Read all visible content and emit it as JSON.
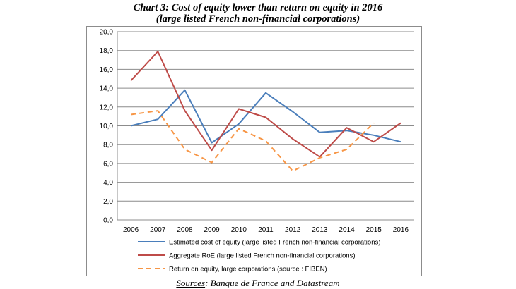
{
  "title_line1": "Chart 3: Cost of equity lower than return on equity in 2016",
  "title_line2": "(large listed French non-financial corporations)",
  "source_label": "Sources",
  "source_text": ": Banque de France and Datastream",
  "chart_data": {
    "type": "line",
    "title": "Chart 3: Cost of equity lower than return on equity in 2016 (large listed French non-financial corporations)",
    "xlabel": "",
    "ylabel": "",
    "categories": [
      "2006",
      "2007",
      "2008",
      "2009",
      "2010",
      "2011",
      "2012",
      "2013",
      "2014",
      "2015",
      "2016"
    ],
    "ylim": [
      0,
      20
    ],
    "yticks": [
      "0,0",
      "2,0",
      "4,0",
      "6,0",
      "8,0",
      "10,0",
      "12,0",
      "14,0",
      "16,0",
      "18,0",
      "20,0"
    ],
    "grid": true,
    "legend_position": "bottom",
    "series": [
      {
        "name": "Estimated cost of equity (large listed French non-financial corporations)",
        "color": "#4a7ebb",
        "dash": "solid",
        "values": [
          10.0,
          10.7,
          13.8,
          8.2,
          10.2,
          13.5,
          11.5,
          9.3,
          9.5,
          9.0,
          8.3
        ]
      },
      {
        "name": "Aggregate RoE (large listed French non-financial corporations)",
        "color": "#be4b48",
        "dash": "solid",
        "values": [
          14.8,
          17.9,
          11.6,
          7.4,
          11.8,
          10.9,
          8.6,
          6.7,
          9.8,
          8.3,
          10.3
        ]
      },
      {
        "name": "Return on equity, large corporations (source :  FIBEN)",
        "color": "#f79646",
        "dash": "dashed",
        "values": [
          11.2,
          11.6,
          7.5,
          6.1,
          9.7,
          8.4,
          5.2,
          6.6,
          7.5,
          10.3,
          null
        ]
      }
    ]
  }
}
